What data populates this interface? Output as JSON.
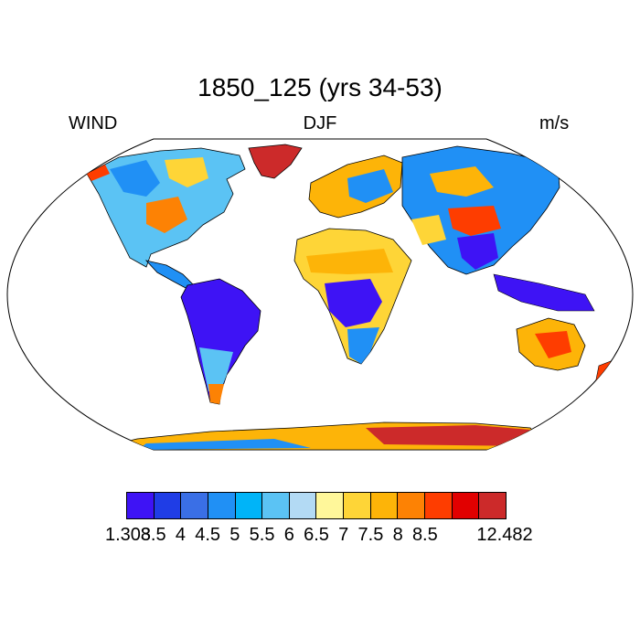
{
  "title": "1850_125 (yrs 34-53)",
  "left_label": "WIND",
  "center_label": "DJF",
  "right_label": "m/s",
  "colorbar": {
    "colors": [
      "#3e13f5",
      "#1f3de6",
      "#3a6fe6",
      "#2090f5",
      "#00b4f8",
      "#5bc3f4",
      "#b3daf4",
      "#fff79a",
      "#fed537",
      "#fdb408",
      "#fd8204",
      "#fe3d00",
      "#e10000",
      "#cc2a2a"
    ],
    "tick_labels": [
      "1.308",
      "3.5",
      "4",
      "4.5",
      "5",
      "5.5",
      "6",
      "6.5",
      "7",
      "7.5",
      "8",
      "8.5",
      "12.482"
    ]
  },
  "map": {
    "projection": "Robinson",
    "land_fill_colors": {
      "low": "#3e13f5",
      "lowmid": "#2090f5",
      "mid": "#5bc3f4",
      "light": "#b3daf4",
      "yellow": "#fff79a",
      "gold": "#fed537",
      "orange": "#fdb408",
      "darkorange": "#fd8204",
      "red": "#fe3d00",
      "crimson": "#cc2a2a"
    }
  }
}
